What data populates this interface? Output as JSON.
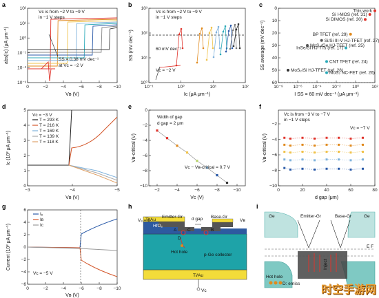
{
  "panels": {
    "a": {
      "label": "a",
      "ylabel": "abs(Iᴄ) (μA μm⁻¹)",
      "xlabel": "Vʙ (V)",
      "yticks": [
        "10²",
        "10¹",
        "10⁰",
        "10⁻¹",
        "10⁻²",
        "10⁻³"
      ],
      "xticks": [
        "0",
        "−2",
        "−4",
        "−6",
        "−8",
        "−10"
      ],
      "ann1": "Vᴄ is from −2 V to −9 V",
      "ann2": "in −1 V steps",
      "ann3": "SS = 0.38 mV dec⁻¹",
      "ann4": "at Vᴄ = −2 V"
    },
    "b": {
      "label": "b",
      "ylabel": "SS (mV dec⁻¹)",
      "xlabel": "Iᴄ (μA μm⁻¹)",
      "yticks": [
        "10³",
        "10²",
        "10¹",
        "10⁰"
      ],
      "xticks": [
        "10⁻¹",
        "10⁰",
        "10¹",
        "10²"
      ],
      "ann1": "Vᴄ is from −2 V to −9 V",
      "ann2": "in −1 V steps",
      "ann3": "60 mV dec⁻¹",
      "ann4": "Vᴄ = −2 V"
    },
    "c": {
      "label": "c",
      "ylabel": "SS average (mV dec⁻¹)",
      "xlabel": "I SS = 60 mV dec⁻¹ (μA μm⁻¹)",
      "yticks": [
        "0",
        "10",
        "20",
        "30",
        "40",
        "50",
        "60"
      ],
      "xticks": [
        "10⁻⁸",
        "10⁻⁶",
        "10⁻⁴",
        "10⁻²",
        "10⁰",
        "10²"
      ],
      "refs": [
        {
          "name": "This work",
          "color": "#e0342c"
        },
        {
          "name": "Si I-MOS (ref. 31)",
          "color": "#e0342c"
        },
        {
          "name": "Si DIMOS (ref. 30)",
          "color": "#e0342c"
        },
        {
          "name": "BP TFET (ref. 29)",
          "color": "#e08a1e"
        },
        {
          "name": "Si/Si III-V HJ-TFET (ref. 27)",
          "color": "#555555"
        },
        {
          "name": "MoS₂/Ge HJ-TFET (ref. 25)",
          "color": "#555555"
        },
        {
          "name": "InSe/Si HJ-TTs (ref. 17)",
          "color": "#2aa9b8"
        },
        {
          "name": "CNT TFET (ref. 24)",
          "color": "#2aa9b8"
        },
        {
          "name": "MoS₂/Si HJ-TFET (ref. 28)",
          "color": "#333333"
        },
        {
          "name": "MoS₂ NC-FET (ref. 26)",
          "color": "#2aa9b8"
        }
      ]
    },
    "d": {
      "label": "d",
      "ylabel": "Iᴄ (10² μA μm⁻¹)",
      "xlabel": "Vʙ (V)",
      "yticks": [
        "0",
        "1",
        "2",
        "3",
        "4",
        "5"
      ],
      "xticks": [
        "−3",
        "−4",
        "−5"
      ],
      "ann1": "Vᴄ = −3 V",
      "legend": [
        "T = 293 K",
        "T = 216 K",
        "T = 169 K",
        "T = 139 K",
        "T = 118 K"
      ],
      "legend_colors": [
        "#222222",
        "#d4582c",
        "#7fb2dc",
        "#aaaaaa",
        "#e0a36a"
      ]
    },
    "e": {
      "label": "e",
      "ylabel": "Vʙ-critical (V)",
      "xlabel": "Vᴄ (V)",
      "yticks": [
        "0",
        "−2",
        "−4",
        "−6",
        "−8",
        "−10"
      ],
      "xticks": [
        "−2",
        "−4",
        "−6",
        "−8",
        "−10"
      ],
      "ann1": "Width of gap",
      "ann2": "d gap = 2 μm",
      "ann3": "Vᴄ − Vʙ-critical = 0.7 V"
    },
    "f": {
      "label": "f",
      "ylabel": "Vʙ-critical (V)",
      "xlabel": "d gap (μm)",
      "yticks": [
        "−2",
        "−4",
        "−6",
        "−8",
        "−10"
      ],
      "xticks": [
        "0",
        "20",
        "40",
        "60",
        "80"
      ],
      "ann1": "Vᴄ is from −3 V to −7 V",
      "ann2": "in −1 V steps",
      "ann3": "Vᴄ = −7 V"
    },
    "g": {
      "label": "g",
      "ylabel": "Current (10² μA μm⁻¹)",
      "xlabel": "Vʙ (V)",
      "yticks": [
        "6",
        "4",
        "2",
        "0",
        "−2",
        "−4",
        "−6"
      ],
      "xticks": [
        "0",
        "−2",
        "−4",
        "−6",
        "−8",
        "−10"
      ],
      "legend": [
        "Iₑ",
        "Iʙ",
        "Iᴄ"
      ],
      "legend_colors": [
        "#2a5aa8",
        "#d4582c",
        "#999999"
      ],
      "ann1": "Vᴄ = −5 V"
    },
    "h": {
      "label": "h",
      "emitter": "Emitter-Gr",
      "base": "Base-Gr",
      "ve": "Vₑ = 0",
      "vb": "Vʙ",
      "vc": "Vᴄ",
      "tiau": "Ti/Au",
      "hfo2": "HfO₂",
      "dgap": "d gap",
      "a": "A",
      "b": "B",
      "c": "C",
      "d": "D",
      "hothole": "Hot hole",
      "collector": "p-Ge collector",
      "tiau_bottom": "Ti/Au"
    },
    "i": {
      "label": "i",
      "ge_left": "Ge",
      "emitter": "Emitter-Gr",
      "base": "Base-Gr",
      "ge_right": "Ge",
      "ef": "E F",
      "hothole": "Hot hole",
      "emission": "D: emiss",
      "injection": "Inject"
    }
  },
  "chart_data": [
    {
      "panel": "a",
      "type": "line",
      "title": "",
      "xlabel": "Vb (V)",
      "ylabel": "abs(Ic) (μA μm−1)",
      "xlim": [
        0,
        -10
      ],
      "ylim_log": [
        -3,
        2
      ],
      "series_note": "Vc from -2 V to -9 V in -1 V steps; abrupt turn-on",
      "turn_on_vb": [
        -2.6,
        -3.4,
        -4.5,
        -5.5,
        -6.4,
        -7.3,
        -8.3,
        -9.2
      ]
    },
    {
      "panel": "b",
      "type": "scatter",
      "title": "",
      "xlabel": "Ic (μA μm−1)",
      "ylabel": "SS (mV dec−1)",
      "ylim_log": [
        0,
        3
      ],
      "xlim_log": [
        -1,
        2.3
      ],
      "reference_line_mV_dec": 60
    },
    {
      "panel": "c",
      "type": "scatter",
      "title": "",
      "xlabel": "I SS=60 (μA μm−1)",
      "ylabel": "SS average (mV dec−1)",
      "ylim": [
        60,
        0
      ],
      "points": [
        {
          "name": "This work",
          "x": 100.0,
          "y": 2
        },
        {
          "name": "Si I-MOS (ref. 31)",
          "x": 30.0,
          "y": 5
        },
        {
          "name": "Si DIMOS (ref. 30)",
          "x": 10.0,
          "y": 9
        },
        {
          "name": "BP TFET (ref. 29)",
          "x": 0.3,
          "y": 21
        },
        {
          "name": "Si/Si III-V HJ-TFET (ref. 27)",
          "x": 0.0003,
          "y": 26
        },
        {
          "name": "MoS2/Ge HJ-TFET (ref. 25)",
          "x": 1e-05,
          "y": 30
        },
        {
          "name": "InSe/Si HJ-TTs (ref. 17)",
          "x": 0.1,
          "y": 32
        },
        {
          "name": "CNT TFET (ref. 24)",
          "x": 0.001,
          "y": 43
        },
        {
          "name": "MoS2/Si HJ-TFET (ref. 28)",
          "x": 1e-07,
          "y": 50
        },
        {
          "name": "MoS2 NC-FET (ref. 26)",
          "x": 0.001,
          "y": 52
        }
      ]
    },
    {
      "panel": "d",
      "type": "line",
      "title": "",
      "xlabel": "Vb (V)",
      "ylabel": "Ic (10^2 μA μm−1)",
      "xlim": [
        -3,
        -5
      ],
      "ylim": [
        0,
        5
      ]
    },
    {
      "panel": "e",
      "type": "line",
      "title": "",
      "xlabel": "Vc (V)",
      "ylabel": "Vb-critical (V)",
      "x": [
        -2,
        -3,
        -4,
        -5,
        -6,
        -7,
        -8,
        -9
      ],
      "values": [
        -2.7,
        -3.7,
        -4.7,
        -5.6,
        -6.7,
        -7.6,
        -8.6,
        -9.6
      ]
    },
    {
      "panel": "f",
      "type": "scatter",
      "title": "",
      "xlabel": "d gap (μm)",
      "ylabel": "Vb-critical (V)",
      "x": [
        5,
        10,
        20,
        30,
        40,
        50,
        60,
        70
      ],
      "series": [
        {
          "name": "Vc=-3",
          "values": [
            -3.8,
            -3.9,
            -3.8,
            -3.9,
            -3.8,
            -3.8,
            -3.9,
            -3.8
          ]
        },
        {
          "name": "Vc=-4",
          "values": [
            -4.7,
            -4.8,
            -4.7,
            -4.8,
            -4.7,
            -4.7,
            -4.8,
            -4.7
          ]
        },
        {
          "name": "Vc=-5",
          "values": [
            -5.6,
            -5.7,
            -5.6,
            -5.7,
            -5.6,
            -5.6,
            -5.7,
            -5.6
          ]
        },
        {
          "name": "Vc=-6",
          "values": [
            -6.6,
            -6.7,
            -6.6,
            -6.7,
            -6.6,
            -6.6,
            -6.7,
            -6.6
          ]
        },
        {
          "name": "Vc=-7",
          "values": [
            -7.7,
            -7.9,
            -7.8,
            -7.9,
            -7.8,
            -7.8,
            -7.9,
            -7.8
          ]
        }
      ]
    },
    {
      "panel": "g",
      "type": "line",
      "title": "",
      "xlabel": "Vb (V)",
      "ylabel": "Current (10^2 μA μm−1)",
      "xlim": [
        0,
        -10
      ],
      "ylim": [
        -6,
        6
      ]
    }
  ]
}
